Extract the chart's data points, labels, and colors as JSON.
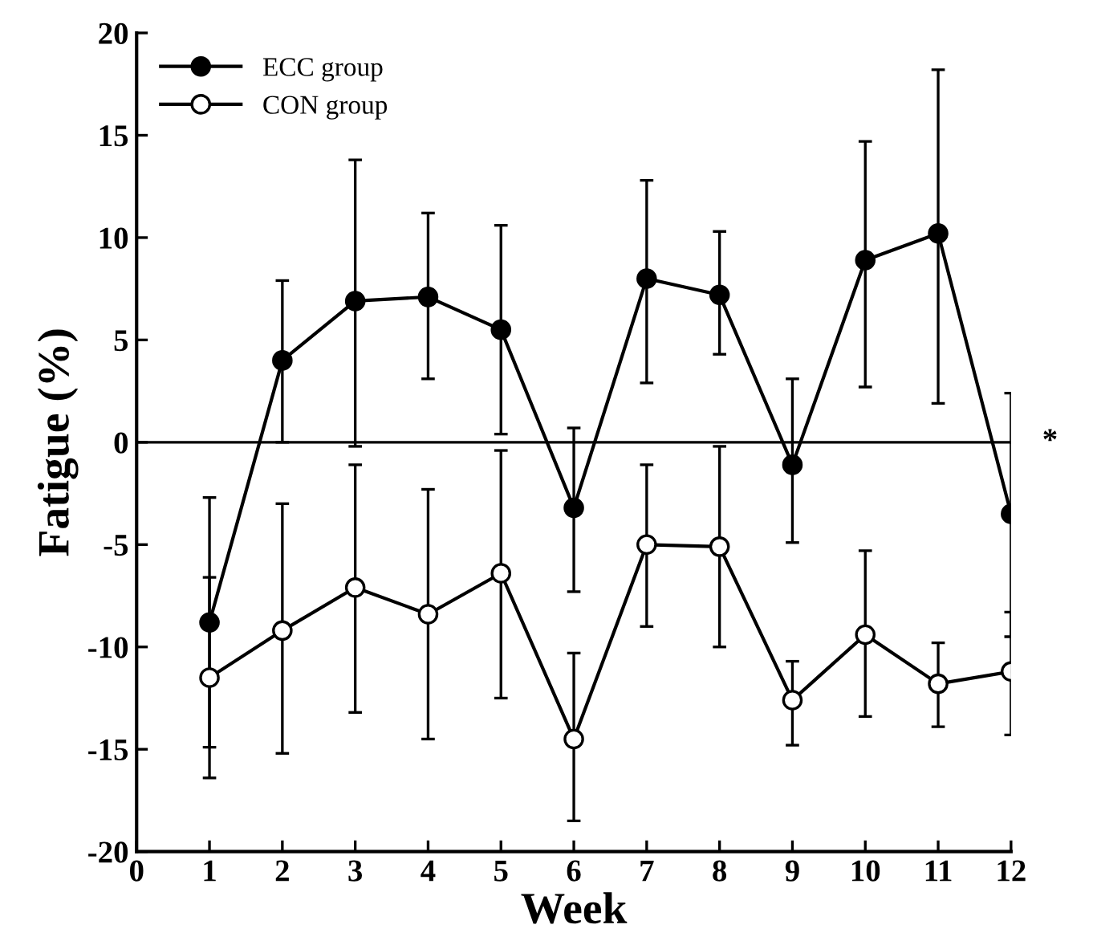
{
  "chart_data": {
    "type": "line",
    "xlabel": "Week",
    "ylabel": "Fatigue (%)",
    "x": [
      1,
      2,
      3,
      4,
      5,
      6,
      7,
      8,
      9,
      10,
      11,
      12
    ],
    "series": [
      {
        "name": "ECC group",
        "color": "#000000",
        "values": [
          -8.8,
          4.0,
          6.9,
          7.1,
          5.5,
          -3.2,
          8.0,
          7.2,
          -1.1,
          8.9,
          10.2,
          -3.5
        ],
        "errors": [
          [
            -14.9,
            -2.7
          ],
          [
            0,
            7.9
          ],
          [
            -0.2,
            13.8
          ],
          [
            3.1,
            11.2
          ],
          [
            0.4,
            10.6
          ],
          [
            -7.3,
            0.7
          ],
          [
            2.9,
            12.8
          ],
          [
            4.3,
            10.3
          ],
          [
            -4.9,
            3.1
          ],
          [
            2.7,
            14.7
          ],
          [
            1.9,
            18.2
          ],
          [
            -9.5,
            2.4
          ]
        ]
      },
      {
        "name": "CON group",
        "color": "#ffffff",
        "values": [
          -11.5,
          -9.2,
          -7.1,
          -8.4,
          -6.4,
          -14.5,
          -5.0,
          -5.1,
          -12.6,
          -9.4,
          -11.8,
          -11.2
        ],
        "errors": [
          [
            -16.4,
            -6.6
          ],
          [
            -15.2,
            -3.0
          ],
          [
            -13.2,
            -1.1
          ],
          [
            -14.5,
            -2.3
          ],
          [
            -12.5,
            -0.4
          ],
          [
            -18.5,
            -10.3
          ],
          [
            -9.0,
            -1.1
          ],
          [
            -10.0,
            -0.2
          ],
          [
            -14.8,
            -10.7
          ],
          [
            -13.4,
            -5.3
          ],
          [
            -13.9,
            -9.8
          ],
          [
            -14.3,
            -8.3
          ]
        ]
      }
    ],
    "xlim": [
      0,
      12
    ],
    "xticks": [
      0,
      1,
      2,
      3,
      4,
      5,
      6,
      7,
      8,
      9,
      10,
      11,
      12
    ],
    "ylim": [
      -20,
      20
    ],
    "yticks": [
      -20,
      -15,
      -10,
      -5,
      0,
      5,
      10,
      15,
      20
    ],
    "ref_lines": [
      {
        "axis": "y",
        "value": 0,
        "label": "*"
      }
    ],
    "marker": "circle",
    "line_style": "solid",
    "legend": "top left",
    "grid": false
  }
}
